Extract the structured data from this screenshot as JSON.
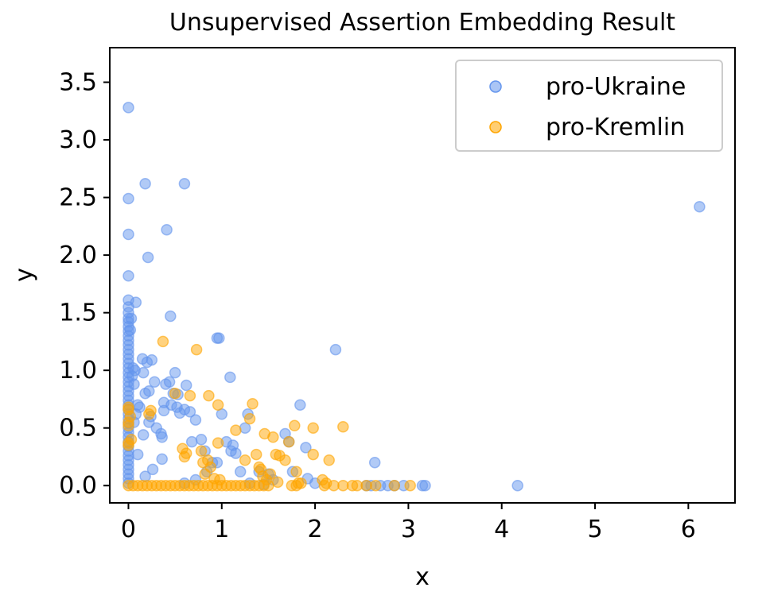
{
  "chart_data": {
    "type": "scatter",
    "title": "Unsupervised Assertion Embedding Result",
    "xlabel": "x",
    "ylabel": "y",
    "xlim": [
      -0.2,
      6.5
    ],
    "ylim": [
      -0.15,
      3.8
    ],
    "xticks": [
      0,
      1,
      2,
      3,
      4,
      5,
      6
    ],
    "yticks": [
      0.0,
      0.5,
      1.0,
      1.5,
      2.0,
      2.5,
      3.0,
      3.5
    ],
    "xtick_labels": [
      "0",
      "1",
      "2",
      "3",
      "4",
      "5",
      "6"
    ],
    "ytick_labels": [
      "0.0",
      "0.5",
      "1.0",
      "1.5",
      "2.0",
      "2.5",
      "3.0",
      "3.5"
    ],
    "grid": false,
    "legend_position": "top-right",
    "series": [
      {
        "name": "pro-Ukraine",
        "color": "#6495ED",
        "points": [
          [
            0,
            3.28
          ],
          [
            0,
            2.49
          ],
          [
            0,
            2.18
          ],
          [
            0,
            1.82
          ],
          [
            0,
            1.61
          ],
          [
            0,
            1.55
          ],
          [
            0,
            1.5
          ],
          [
            0,
            1.45
          ],
          [
            0,
            1.42
          ],
          [
            0,
            1.38
          ],
          [
            0,
            1.34
          ],
          [
            0,
            1.3
          ],
          [
            0,
            1.26
          ],
          [
            0,
            1.22
          ],
          [
            0,
            1.18
          ],
          [
            0,
            1.14
          ],
          [
            0,
            1.1
          ],
          [
            0,
            1.06
          ],
          [
            0,
            1.02
          ],
          [
            0,
            0.98
          ],
          [
            0,
            0.94
          ],
          [
            0,
            0.9
          ],
          [
            0,
            0.86
          ],
          [
            0,
            0.82
          ],
          [
            0,
            0.78
          ],
          [
            0,
            0.74
          ],
          [
            0,
            0.7
          ],
          [
            0,
            0.66
          ],
          [
            0,
            0.62
          ],
          [
            0,
            0.58
          ],
          [
            0,
            0.54
          ],
          [
            0,
            0.5
          ],
          [
            0,
            0.46
          ],
          [
            0,
            0.42
          ],
          [
            0,
            0.38
          ],
          [
            0,
            0.34
          ],
          [
            0,
            0.3
          ],
          [
            0,
            0.26
          ],
          [
            0,
            0.22
          ],
          [
            0,
            0.18
          ],
          [
            0,
            0.14
          ],
          [
            0,
            0.1
          ],
          [
            0,
            0.06
          ],
          [
            0,
            0.02
          ],
          [
            0.05,
            1.02
          ],
          [
            0.07,
            1.0
          ],
          [
            0.04,
            0.95
          ],
          [
            0.06,
            0.88
          ],
          [
            0.08,
            1.59
          ],
          [
            0.03,
            1.45
          ],
          [
            0.02,
            1.35
          ],
          [
            0.18,
            2.62
          ],
          [
            0.6,
            2.62
          ],
          [
            0.41,
            2.22
          ],
          [
            0.21,
            1.98
          ],
          [
            0.45,
            1.47
          ],
          [
            0.1,
            0.7
          ],
          [
            0.15,
            1.1
          ],
          [
            0.2,
            1.07
          ],
          [
            0.25,
            1.09
          ],
          [
            0.16,
            0.98
          ],
          [
            0.28,
            0.9
          ],
          [
            0.22,
            0.82
          ],
          [
            0.18,
            0.8
          ],
          [
            0.4,
            0.88
          ],
          [
            0.44,
            0.9
          ],
          [
            0.5,
            0.98
          ],
          [
            0.62,
            0.87
          ],
          [
            0.53,
            0.79
          ],
          [
            0.48,
            0.8
          ],
          [
            0.38,
            0.72
          ],
          [
            0.46,
            0.7
          ],
          [
            0.52,
            0.68
          ],
          [
            0.6,
            0.66
          ],
          [
            0.66,
            0.64
          ],
          [
            0.72,
            0.57
          ],
          [
            0.55,
            0.63
          ],
          [
            0.38,
            0.65
          ],
          [
            0.3,
            0.5
          ],
          [
            0.35,
            0.45
          ],
          [
            0.36,
            0.42
          ],
          [
            0.16,
            0.44
          ],
          [
            0.22,
            0.55
          ],
          [
            0.24,
            0.6
          ],
          [
            0.12,
            0.68
          ],
          [
            0.08,
            0.62
          ],
          [
            0.06,
            0.55
          ],
          [
            0.1,
            0.27
          ],
          [
            0.36,
            0.23
          ],
          [
            0.26,
            0.14
          ],
          [
            0.18,
            0.08
          ],
          [
            0.95,
            1.28
          ],
          [
            0.97,
            1.28
          ],
          [
            1.09,
            0.94
          ],
          [
            1.0,
            0.62
          ],
          [
            0.68,
            0.38
          ],
          [
            0.78,
            0.4
          ],
          [
            0.82,
            0.3
          ],
          [
            0.9,
            0.2
          ],
          [
            0.95,
            0.2
          ],
          [
            1.05,
            0.38
          ],
          [
            1.1,
            0.3
          ],
          [
            1.12,
            0.35
          ],
          [
            1.15,
            0.28
          ],
          [
            1.2,
            0.12
          ],
          [
            1.28,
            0.62
          ],
          [
            1.25,
            0.5
          ],
          [
            1.4,
            0.12
          ],
          [
            1.5,
            0.1
          ],
          [
            1.55,
            0.05
          ],
          [
            1.68,
            0.45
          ],
          [
            1.72,
            0.38
          ],
          [
            1.76,
            0.12
          ],
          [
            1.84,
            0.7
          ],
          [
            1.9,
            0.33
          ],
          [
            1.92,
            0.06
          ],
          [
            2.22,
            1.18
          ],
          [
            2.64,
            0.2
          ],
          [
            2.0,
            0.02
          ],
          [
            0.72,
            0.05
          ],
          [
            0.6,
            0.02
          ],
          [
            0.84,
            0.12
          ],
          [
            1.3,
            0.02
          ],
          [
            1.45,
            0.01
          ],
          [
            2.55,
            0.0
          ],
          [
            2.6,
            0.0
          ],
          [
            2.7,
            0.0
          ],
          [
            2.78,
            0.0
          ],
          [
            2.85,
            0.0
          ],
          [
            2.95,
            0.0
          ],
          [
            3.15,
            0.0
          ],
          [
            3.18,
            0.0
          ],
          [
            4.17,
            0.0
          ],
          [
            6.12,
            2.42
          ]
        ]
      },
      {
        "name": "pro-Kremlin",
        "color": "#FFA500",
        "points": [
          [
            0,
            0.68
          ],
          [
            0,
            0.66
          ],
          [
            0,
            0.55
          ],
          [
            0,
            0.52
          ],
          [
            0,
            0.37
          ],
          [
            0,
            0.35
          ],
          [
            0,
            0.0
          ],
          [
            0.02,
            0.6
          ],
          [
            0.03,
            0.4
          ],
          [
            0.37,
            1.25
          ],
          [
            0.73,
            1.18
          ],
          [
            0.5,
            0.8
          ],
          [
            0.22,
            0.62
          ],
          [
            0.24,
            0.65
          ],
          [
            0.58,
            0.32
          ],
          [
            0.62,
            0.28
          ],
          [
            0.66,
            0.78
          ],
          [
            0.86,
            0.78
          ],
          [
            0.96,
            0.7
          ],
          [
            0.96,
            0.37
          ],
          [
            0.78,
            0.3
          ],
          [
            0.6,
            0.25
          ],
          [
            0.85,
            0.22
          ],
          [
            0.8,
            0.2
          ],
          [
            0.88,
            0.16
          ],
          [
            0.82,
            0.1
          ],
          [
            0.92,
            0.06
          ],
          [
            0.98,
            0.05
          ],
          [
            1.15,
            0.48
          ],
          [
            1.25,
            0.22
          ],
          [
            1.3,
            0.58
          ],
          [
            1.33,
            0.71
          ],
          [
            1.37,
            0.27
          ],
          [
            1.4,
            0.16
          ],
          [
            1.42,
            0.14
          ],
          [
            1.44,
            0.08
          ],
          [
            1.46,
            0.45
          ],
          [
            1.55,
            0.42
          ],
          [
            1.58,
            0.27
          ],
          [
            1.62,
            0.26
          ],
          [
            1.68,
            0.22
          ],
          [
            1.72,
            0.38
          ],
          [
            1.78,
            0.52
          ],
          [
            1.8,
            0.12
          ],
          [
            1.85,
            0.02
          ],
          [
            1.98,
            0.5
          ],
          [
            1.98,
            0.27
          ],
          [
            2.08,
            0.05
          ],
          [
            2.15,
            0.22
          ],
          [
            2.3,
            0.51
          ],
          [
            1.52,
            0.1
          ],
          [
            1.48,
            0.05
          ],
          [
            1.6,
            0.03
          ],
          [
            0.05,
            0.0
          ],
          [
            0.1,
            0.0
          ],
          [
            0.15,
            0.0
          ],
          [
            0.2,
            0.0
          ],
          [
            0.25,
            0.0
          ],
          [
            0.3,
            0.0
          ],
          [
            0.35,
            0.0
          ],
          [
            0.4,
            0.0
          ],
          [
            0.45,
            0.0
          ],
          [
            0.5,
            0.0
          ],
          [
            0.55,
            0.0
          ],
          [
            0.6,
            0.0
          ],
          [
            0.65,
            0.0
          ],
          [
            0.7,
            0.0
          ],
          [
            0.75,
            0.0
          ],
          [
            0.8,
            0.0
          ],
          [
            0.85,
            0.0
          ],
          [
            0.9,
            0.0
          ],
          [
            0.95,
            0.0
          ],
          [
            1.0,
            0.0
          ],
          [
            1.05,
            0.0
          ],
          [
            1.1,
            0.0
          ],
          [
            1.15,
            0.0
          ],
          [
            1.2,
            0.0
          ],
          [
            1.25,
            0.0
          ],
          [
            1.3,
            0.0
          ],
          [
            1.35,
            0.0
          ],
          [
            1.4,
            0.0
          ],
          [
            1.45,
            0.0
          ],
          [
            1.5,
            0.0
          ],
          [
            1.75,
            0.0
          ],
          [
            1.8,
            0.0
          ],
          [
            1.82,
            0.02
          ],
          [
            2.1,
            0.0
          ],
          [
            2.12,
            0.02
          ],
          [
            2.2,
            0.0
          ],
          [
            2.3,
            0.0
          ],
          [
            2.4,
            0.0
          ],
          [
            2.45,
            0.0
          ],
          [
            2.55,
            0.0
          ],
          [
            2.65,
            0.0
          ],
          [
            2.85,
            0.0
          ],
          [
            3.02,
            0.0
          ]
        ]
      }
    ]
  }
}
